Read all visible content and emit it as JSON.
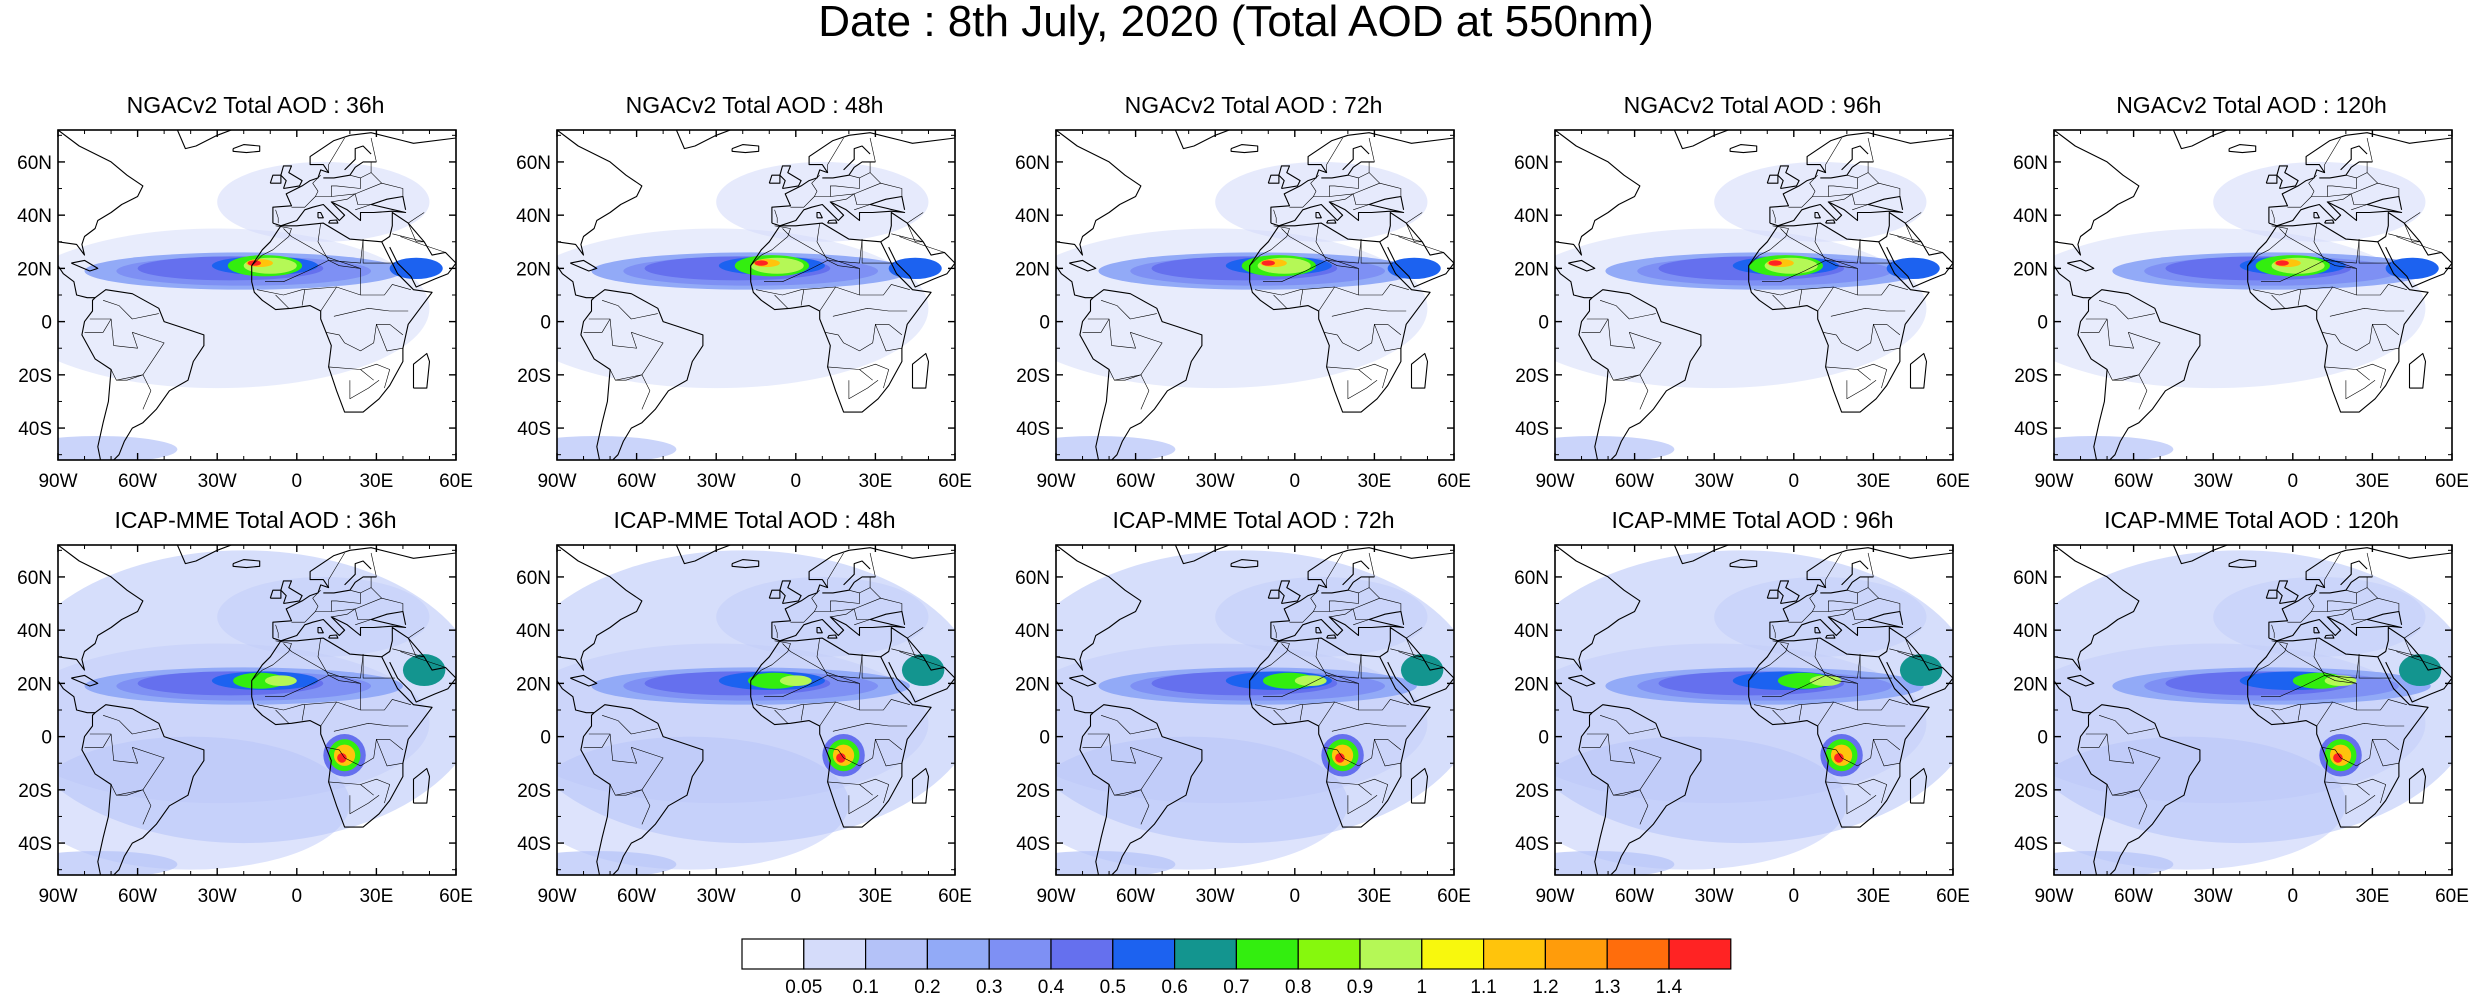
{
  "title": "Date : 8th July, 2020 (Total AOD at 550nm)",
  "rows": [
    {
      "model": "NGACv2",
      "panels": [
        {
          "title": "NGACv2 Total AOD : 36h"
        },
        {
          "title": "NGACv2 Total AOD : 48h"
        },
        {
          "title": "NGACv2 Total AOD : 72h"
        },
        {
          "title": "NGACv2 Total AOD : 96h"
        },
        {
          "title": "NGACv2 Total AOD : 120h"
        }
      ]
    },
    {
      "model": "ICAP-MME",
      "panels": [
        {
          "title": "ICAP-MME Total AOD : 36h"
        },
        {
          "title": "ICAP-MME Total AOD : 48h"
        },
        {
          "title": "ICAP-MME Total AOD : 72h"
        },
        {
          "title": "ICAP-MME Total AOD : 96h"
        },
        {
          "title": "ICAP-MME Total AOD : 120h"
        }
      ]
    }
  ],
  "map": {
    "lon_range": [
      -90,
      60
    ],
    "lat_range": [
      -52,
      72
    ],
    "lon_ticks": [
      -90,
      -60,
      -30,
      0,
      30,
      60
    ],
    "lon_tick_labels": [
      "90W",
      "60W",
      "30W",
      "0",
      "30E",
      "60E"
    ],
    "lat_ticks": [
      -40,
      -20,
      0,
      20,
      40,
      60
    ],
    "lat_tick_labels": [
      "40S",
      "20S",
      "0",
      "20N",
      "40N",
      "60N"
    ]
  },
  "colorbar": {
    "colors": [
      "#ffffff",
      "#d5dcfa",
      "#b4c2f8",
      "#92aaf7",
      "#7e90f4",
      "#6570ee",
      "#1c62f0",
      "#13958f",
      "#33ee0f",
      "#86f80d",
      "#b5f856",
      "#f8f80d",
      "#ffc40c",
      "#ff9c0b",
      "#ff6d0c",
      "#ff2323"
    ],
    "labels": [
      "0.05",
      "0.1",
      "0.2",
      "0.3",
      "0.4",
      "0.5",
      "0.6",
      "0.7",
      "0.8",
      "0.9",
      "1",
      "1.1",
      "1.2",
      "1.3",
      "1.4"
    ]
  }
}
